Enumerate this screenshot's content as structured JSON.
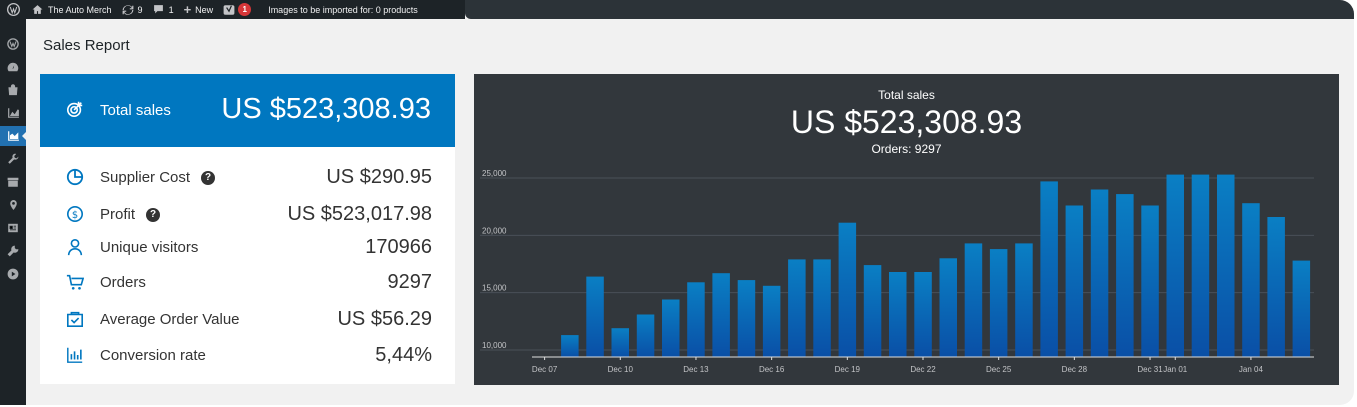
{
  "admin_bar": {
    "site_name": "The Auto Merch",
    "updates_count": "9",
    "comments_count": "1",
    "new_label": "New",
    "yoast_badge": "1",
    "import_notice": "Images to be imported for: 0 products"
  },
  "side_menu": {
    "items": [
      "wordpress-icon",
      "dashboard-icon",
      "store-icon",
      "stats-icon",
      "analytics-icon",
      "tools-icon",
      "archive-icon",
      "location-icon",
      "media-icon",
      "wrench-icon",
      "play-icon"
    ],
    "active_index": 4
  },
  "page": {
    "title": "Sales Report"
  },
  "summary": {
    "total": {
      "label": "Total sales",
      "value": "US $523,308.93"
    },
    "stats": [
      {
        "icon": "pie-chart-icon",
        "label": "Supplier Cost",
        "value": "US $290.95",
        "help": "?"
      },
      {
        "icon": "dollar-icon",
        "label": "Profit",
        "value": "US $523,017.98",
        "help": "?"
      },
      {
        "icon": "user-icon",
        "label": "Unique visitors",
        "value": "170966"
      },
      {
        "icon": "cart-icon",
        "label": "Orders",
        "value": "9297"
      },
      {
        "icon": "bag-icon",
        "label": "Average Order Value",
        "value": "US $56.29"
      },
      {
        "icon": "bar-chart-icon",
        "label": "Conversion rate",
        "value": "5,44%"
      }
    ]
  },
  "chart_header": {
    "subtitle": "Total sales",
    "total": "US $523,308.93",
    "orders": "Orders: 9297"
  },
  "colors": {
    "accent": "#0077c0",
    "chart_bg": "#32373c",
    "bar_top": "#0a7fc4",
    "bar_bottom": "#0a4fa6"
  },
  "chart_data": {
    "type": "bar",
    "categories": [
      "Dec 07",
      "Dec 08",
      "Dec 09",
      "Dec 10",
      "Dec 11",
      "Dec 12",
      "Dec 13",
      "Dec 14",
      "Dec 15",
      "Dec 16",
      "Dec 17",
      "Dec 18",
      "Dec 19",
      "Dec 20",
      "Dec 21",
      "Dec 22",
      "Dec 23",
      "Dec 24",
      "Dec 25",
      "Dec 26",
      "Dec 27",
      "Dec 28",
      "Dec 29",
      "Dec 30",
      "Dec 31",
      "Jan 01",
      "Jan 02",
      "Jan 03",
      "Jan 04",
      "Jan 05",
      "Jan 06"
    ],
    "values": [
      null,
      11300,
      16400,
      11900,
      13100,
      14400,
      15900,
      16700,
      16100,
      15600,
      17900,
      17900,
      21100,
      17400,
      16800,
      16800,
      18000,
      19300,
      18800,
      19300,
      24700,
      22600,
      24000,
      23600,
      22600,
      25300,
      25300,
      25300,
      22800,
      21600,
      17800
    ],
    "x_tick_labels": [
      "Dec 07",
      "Dec 10",
      "Dec 13",
      "Dec 16",
      "Dec 19",
      "Dec 22",
      "Dec 25",
      "Dec 28",
      "Dec 31",
      "Jan 01",
      "Jan 04"
    ],
    "y_ticks": [
      "10,000",
      "15,000",
      "20,000",
      "25,000"
    ],
    "ylim": [
      9500,
      25500
    ],
    "grid": true,
    "title": "Total sales"
  }
}
